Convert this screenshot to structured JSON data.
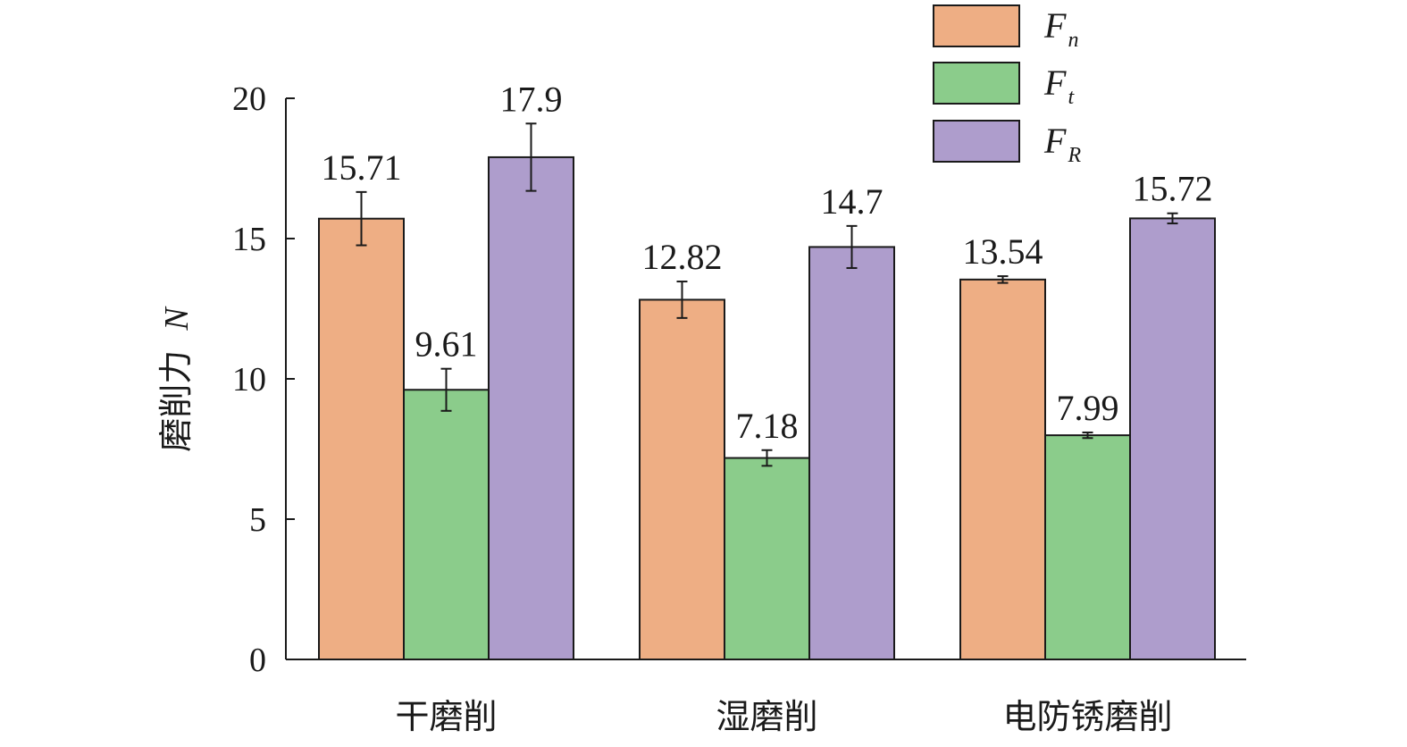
{
  "chart_data": {
    "type": "bar",
    "categories": [
      "干磨削",
      "湿磨削",
      "电防锈磨削"
    ],
    "series": [
      {
        "name": "F",
        "subscript": "n",
        "color": "#eeae84",
        "values": [
          15.71,
          12.82,
          13.54
        ],
        "errors": [
          0.95,
          0.65,
          0.12
        ],
        "labels": [
          "15.71",
          "12.82",
          "13.54"
        ]
      },
      {
        "name": "F",
        "subscript": "t",
        "color": "#8bcc8b",
        "values": [
          9.61,
          7.18,
          7.99
        ],
        "errors": [
          0.75,
          0.28,
          0.1
        ],
        "labels": [
          "9.61",
          "7.18",
          "7.99"
        ]
      },
      {
        "name": "F",
        "subscript": "R",
        "color": "#ae9dcc",
        "values": [
          17.9,
          14.7,
          15.72
        ],
        "errors": [
          1.2,
          0.75,
          0.18
        ],
        "labels": [
          "17.9",
          "14.7",
          "15.72"
        ]
      }
    ],
    "ylabel": "磨削力",
    "ylabel_unit": "N",
    "ylim": [
      0,
      20
    ],
    "yticks": [
      0,
      5,
      10,
      15,
      20
    ],
    "ytick_labels": [
      "0",
      "5",
      "10",
      "15",
      "20"
    ],
    "legend_position": "top-right",
    "grid": false
  }
}
